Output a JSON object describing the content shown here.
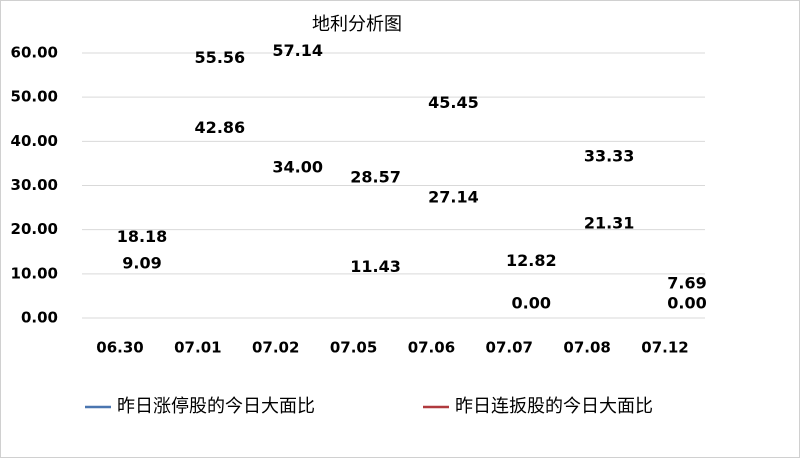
{
  "chart_data": {
    "type": "line",
    "title": "地利分析图",
    "categories": [
      "06.30",
      "07.01",
      "07.02",
      "07.05",
      "07.06",
      "07.07",
      "07.08",
      "07.12"
    ],
    "series": [
      {
        "name": "昨日涨停股的今日大面比",
        "color": "#4a76b0",
        "values": [
          18.18,
          42.86,
          34.0,
          11.43,
          27.14,
          12.82,
          21.31,
          7.69
        ],
        "value_labels": [
          "18.18",
          "42.86",
          "34.00",
          "11.43",
          "27.14",
          "12.82",
          "21.31",
          "7.69"
        ]
      },
      {
        "name": "昨日连扳股的今日大面比",
        "color": "#b03a3e",
        "values": [
          9.09,
          55.56,
          57.14,
          28.57,
          45.45,
          0.0,
          33.33,
          0.0
        ],
        "value_labels": [
          "9.09",
          "55.56",
          "57.14",
          "28.57",
          "45.45",
          "0.00",
          "33.33",
          "0.00"
        ]
      }
    ],
    "ylim": [
      0,
      60
    ],
    "yticks": [
      {
        "value": 0,
        "label": "0.00"
      },
      {
        "value": 10,
        "label": "10.00"
      },
      {
        "value": 20,
        "label": "20.00"
      },
      {
        "value": 30,
        "label": "30.00"
      },
      {
        "value": 40,
        "label": "40.00"
      },
      {
        "value": 50,
        "label": "50.00"
      },
      {
        "value": 60,
        "label": "60.00"
      }
    ],
    "grid": true,
    "legend": "bottom"
  }
}
